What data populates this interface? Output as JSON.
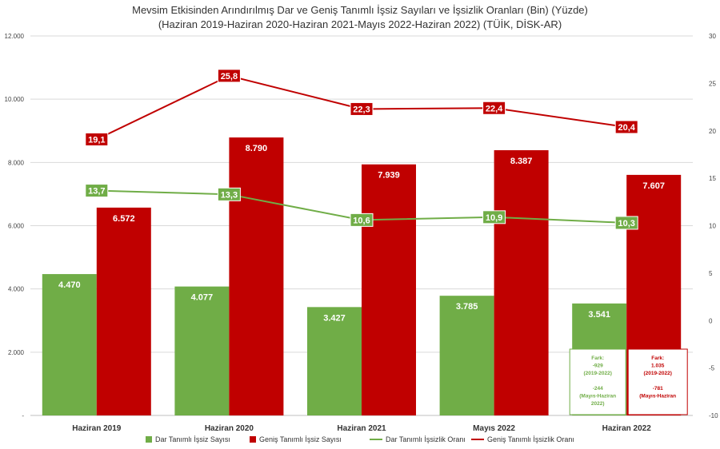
{
  "chart_data": {
    "type": "bar",
    "title": "Mevsim Etkisinden Arındırılmış Dar ve Geniş Tanımlı İşsiz Sayıları ve İşsizlik Oranları (Bin) (Yüzde)",
    "subtitle": "(Haziran 2019-Haziran 2020-Haziran 2021-Mayıs 2022-Haziran 2022) (TÜİK, DİSK-AR)",
    "categories": [
      "Haziran 2019",
      "Haziran 2020",
      "Haziran 2021",
      "Mayıs 2022",
      "Haziran 2022"
    ],
    "y_left": {
      "ylim": [
        0,
        12000
      ],
      "ticks": [
        "-",
        "2.000",
        "4.000",
        "6.000",
        "8.000",
        "10.000",
        "12.000"
      ]
    },
    "y_right": {
      "ylim": [
        -10,
        30
      ],
      "ticks": [
        "-10",
        "-5",
        "0",
        "5",
        "10",
        "15",
        "20",
        "25",
        "30"
      ]
    },
    "series": [
      {
        "name": "Dar Tanımlı İşsiz Sayısı",
        "kind": "bar",
        "axis": "left",
        "color": "#70ad47",
        "values": [
          4470,
          4077,
          3427,
          3785,
          3541
        ],
        "labels": [
          "4.470",
          "4.077",
          "3.427",
          "3.785",
          "3.541"
        ]
      },
      {
        "name": "Geniş Tanımlı İşsiz Sayısı",
        "kind": "bar",
        "axis": "left",
        "color": "#c00000",
        "values": [
          6572,
          8790,
          7939,
          8387,
          7607
        ],
        "labels": [
          "6.572",
          "8.790",
          "7.939",
          "8.387",
          "7.607"
        ]
      },
      {
        "name": "Dar Tanımlı İşsizlik Oranı",
        "kind": "line",
        "axis": "right",
        "color": "#70ad47",
        "values": [
          13.7,
          13.3,
          10.6,
          10.9,
          10.3
        ],
        "labels": [
          "13,7",
          "13,3",
          "10,6",
          "10,9",
          "10,3"
        ]
      },
      {
        "name": "Geniş Tanımlı İşsizlik Oranı",
        "kind": "line",
        "axis": "right",
        "color": "#c00000",
        "values": [
          19.1,
          25.8,
          22.3,
          22.4,
          20.4
        ],
        "labels": [
          "19,1",
          "25,8",
          "22,3",
          "22,4",
          "20,4"
        ]
      }
    ],
    "annotations": [
      {
        "color": "#70ad47",
        "lines": [
          "Fark:",
          "-929",
          "(2019-2022)",
          "",
          "-244",
          "(Mayıs-Haziran",
          "2022)"
        ]
      },
      {
        "color": "#c00000",
        "lines": [
          "Fark:",
          "1.035",
          "(2019-2022)",
          "",
          "-781",
          "(Mayıs-Haziran"
        ]
      }
    ],
    "grid": true,
    "legend": "bottom"
  }
}
